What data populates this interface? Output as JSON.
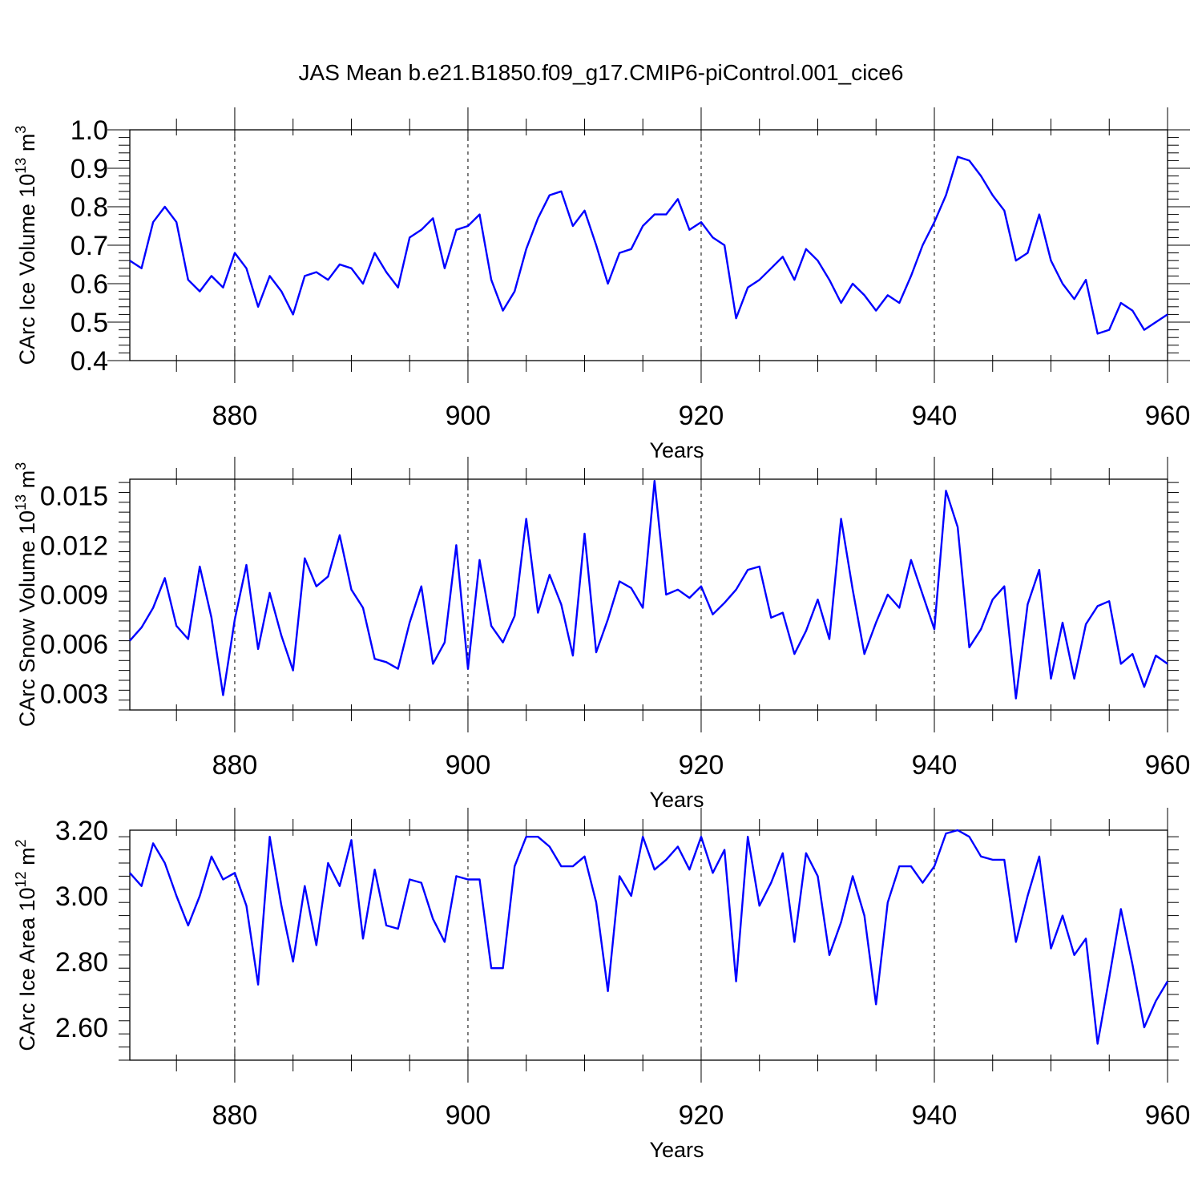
{
  "title": "JAS Mean b.e21.B1850.f09_g17.CMIP6-piControl.001_cice6",
  "chart_data": [
    {
      "type": "line",
      "xlabel": "Years",
      "ylabel": "CArc Ice Volume 10",
      "ylabel_exp": "13",
      "ylabel_unit": " m",
      "ylabel_unit_exp": "3",
      "xlim": [
        871,
        960
      ],
      "ylim": [
        0.4,
        1.0
      ],
      "xticks": [
        880,
        900,
        920,
        940,
        960
      ],
      "yticks": [
        0.4,
        0.5,
        0.6,
        0.7,
        0.8,
        0.9,
        1.0
      ],
      "ytick_labels": [
        "0.4",
        "0.5",
        "0.6",
        "0.7",
        "0.8",
        "0.9",
        "1.0"
      ],
      "grid": "dashed vertical at major x ticks",
      "line_color": "#0000ff",
      "x_start": 871,
      "values": [
        0.66,
        0.64,
        0.76,
        0.8,
        0.76,
        0.61,
        0.58,
        0.62,
        0.59,
        0.68,
        0.64,
        0.54,
        0.62,
        0.58,
        0.52,
        0.62,
        0.63,
        0.61,
        0.65,
        0.64,
        0.6,
        0.68,
        0.63,
        0.59,
        0.72,
        0.74,
        0.77,
        0.64,
        0.74,
        0.75,
        0.78,
        0.61,
        0.53,
        0.58,
        0.69,
        0.77,
        0.83,
        0.84,
        0.75,
        0.79,
        0.7,
        0.6,
        0.68,
        0.69,
        0.75,
        0.78,
        0.78,
        0.82,
        0.74,
        0.76,
        0.72,
        0.7,
        0.51,
        0.59,
        0.61,
        0.64,
        0.67,
        0.61,
        0.69,
        0.66,
        0.61,
        0.55,
        0.6,
        0.57,
        0.53,
        0.57,
        0.55,
        0.62,
        0.7,
        0.76,
        0.83,
        0.93,
        0.92,
        0.88,
        0.83,
        0.79,
        0.66,
        0.68,
        0.78,
        0.66,
        0.6,
        0.56,
        0.61,
        0.47,
        0.48,
        0.55,
        0.53,
        0.48,
        0.5,
        0.52
      ]
    },
    {
      "type": "line",
      "xlabel": "Years",
      "ylabel": "CArc Snow Volume 10",
      "ylabel_exp": "13",
      "ylabel_unit": " m",
      "ylabel_unit_exp": "3",
      "xlim": [
        871,
        960
      ],
      "ylim": [
        0.002,
        0.016
      ],
      "xticks": [
        880,
        900,
        920,
        940,
        960
      ],
      "yticks": [
        0.003,
        0.006,
        0.009,
        0.012,
        0.015
      ],
      "ytick_labels": [
        "0.003",
        "0.006",
        "0.009",
        "0.012",
        "0.015"
      ],
      "grid": "dashed vertical at major x ticks",
      "line_color": "#0000ff",
      "x_start": 871,
      "values": [
        0.0062,
        0.007,
        0.0082,
        0.01,
        0.0071,
        0.0063,
        0.0107,
        0.0076,
        0.0029,
        0.0075,
        0.0108,
        0.0057,
        0.0091,
        0.0065,
        0.0044,
        0.0112,
        0.0095,
        0.0101,
        0.0126,
        0.0093,
        0.0082,
        0.0051,
        0.0049,
        0.0045,
        0.0073,
        0.0095,
        0.0048,
        0.0061,
        0.012,
        0.0045,
        0.0111,
        0.0071,
        0.0061,
        0.0077,
        0.0136,
        0.0079,
        0.0102,
        0.0084,
        0.0053,
        0.0127,
        0.0055,
        0.0075,
        0.0098,
        0.0094,
        0.0082,
        0.0159,
        0.009,
        0.0093,
        0.0088,
        0.0095,
        0.0078,
        0.0085,
        0.0093,
        0.0105,
        0.0107,
        0.0076,
        0.0079,
        0.0054,
        0.0068,
        0.0087,
        0.0063,
        0.0136,
        0.0093,
        0.0054,
        0.0073,
        0.009,
        0.0082,
        0.0111,
        0.009,
        0.0069,
        0.0153,
        0.0131,
        0.0058,
        0.0069,
        0.0087,
        0.0095,
        0.0027,
        0.0084,
        0.0105,
        0.0039,
        0.0073,
        0.0039,
        0.0072,
        0.0083,
        0.0086,
        0.0048,
        0.0054,
        0.0034,
        0.0053,
        0.0048
      ]
    },
    {
      "type": "line",
      "xlabel": "Years",
      "ylabel": "CArc Ice Area 10",
      "ylabel_exp": "12",
      "ylabel_unit": " m",
      "ylabel_unit_exp": "2",
      "xlim": [
        871,
        960
      ],
      "ylim": [
        2.5,
        3.2
      ],
      "xticks": [
        880,
        900,
        920,
        940,
        960
      ],
      "yticks": [
        2.6,
        2.8,
        3.0,
        3.2
      ],
      "ytick_labels": [
        "2.60",
        "2.80",
        "3.00",
        "3.20"
      ],
      "grid": "dashed vertical at major x ticks",
      "line_color": "#0000ff",
      "x_start": 871,
      "values": [
        3.07,
        3.03,
        3.16,
        3.1,
        3.0,
        2.91,
        3.0,
        3.12,
        3.05,
        3.07,
        2.97,
        2.73,
        3.18,
        2.97,
        2.8,
        3.03,
        2.85,
        3.1,
        3.03,
        3.17,
        2.87,
        3.08,
        2.91,
        2.9,
        3.05,
        3.04,
        2.93,
        2.86,
        3.06,
        3.05,
        3.05,
        2.78,
        2.78,
        3.09,
        3.18,
        3.18,
        3.15,
        3.09,
        3.09,
        3.12,
        2.98,
        2.71,
        3.06,
        3.0,
        3.18,
        3.08,
        3.11,
        3.15,
        3.08,
        3.18,
        3.07,
        3.14,
        2.74,
        3.18,
        2.97,
        3.04,
        3.13,
        2.86,
        3.13,
        3.06,
        2.82,
        2.92,
        3.06,
        2.94,
        2.67,
        2.98,
        3.09,
        3.09,
        3.04,
        3.09,
        3.19,
        3.2,
        3.18,
        3.12,
        3.11,
        3.11,
        2.86,
        3.0,
        3.12,
        2.84,
        2.94,
        2.82,
        2.87,
        2.55,
        2.75,
        2.96,
        2.79,
        2.6,
        2.68,
        2.74
      ]
    }
  ]
}
